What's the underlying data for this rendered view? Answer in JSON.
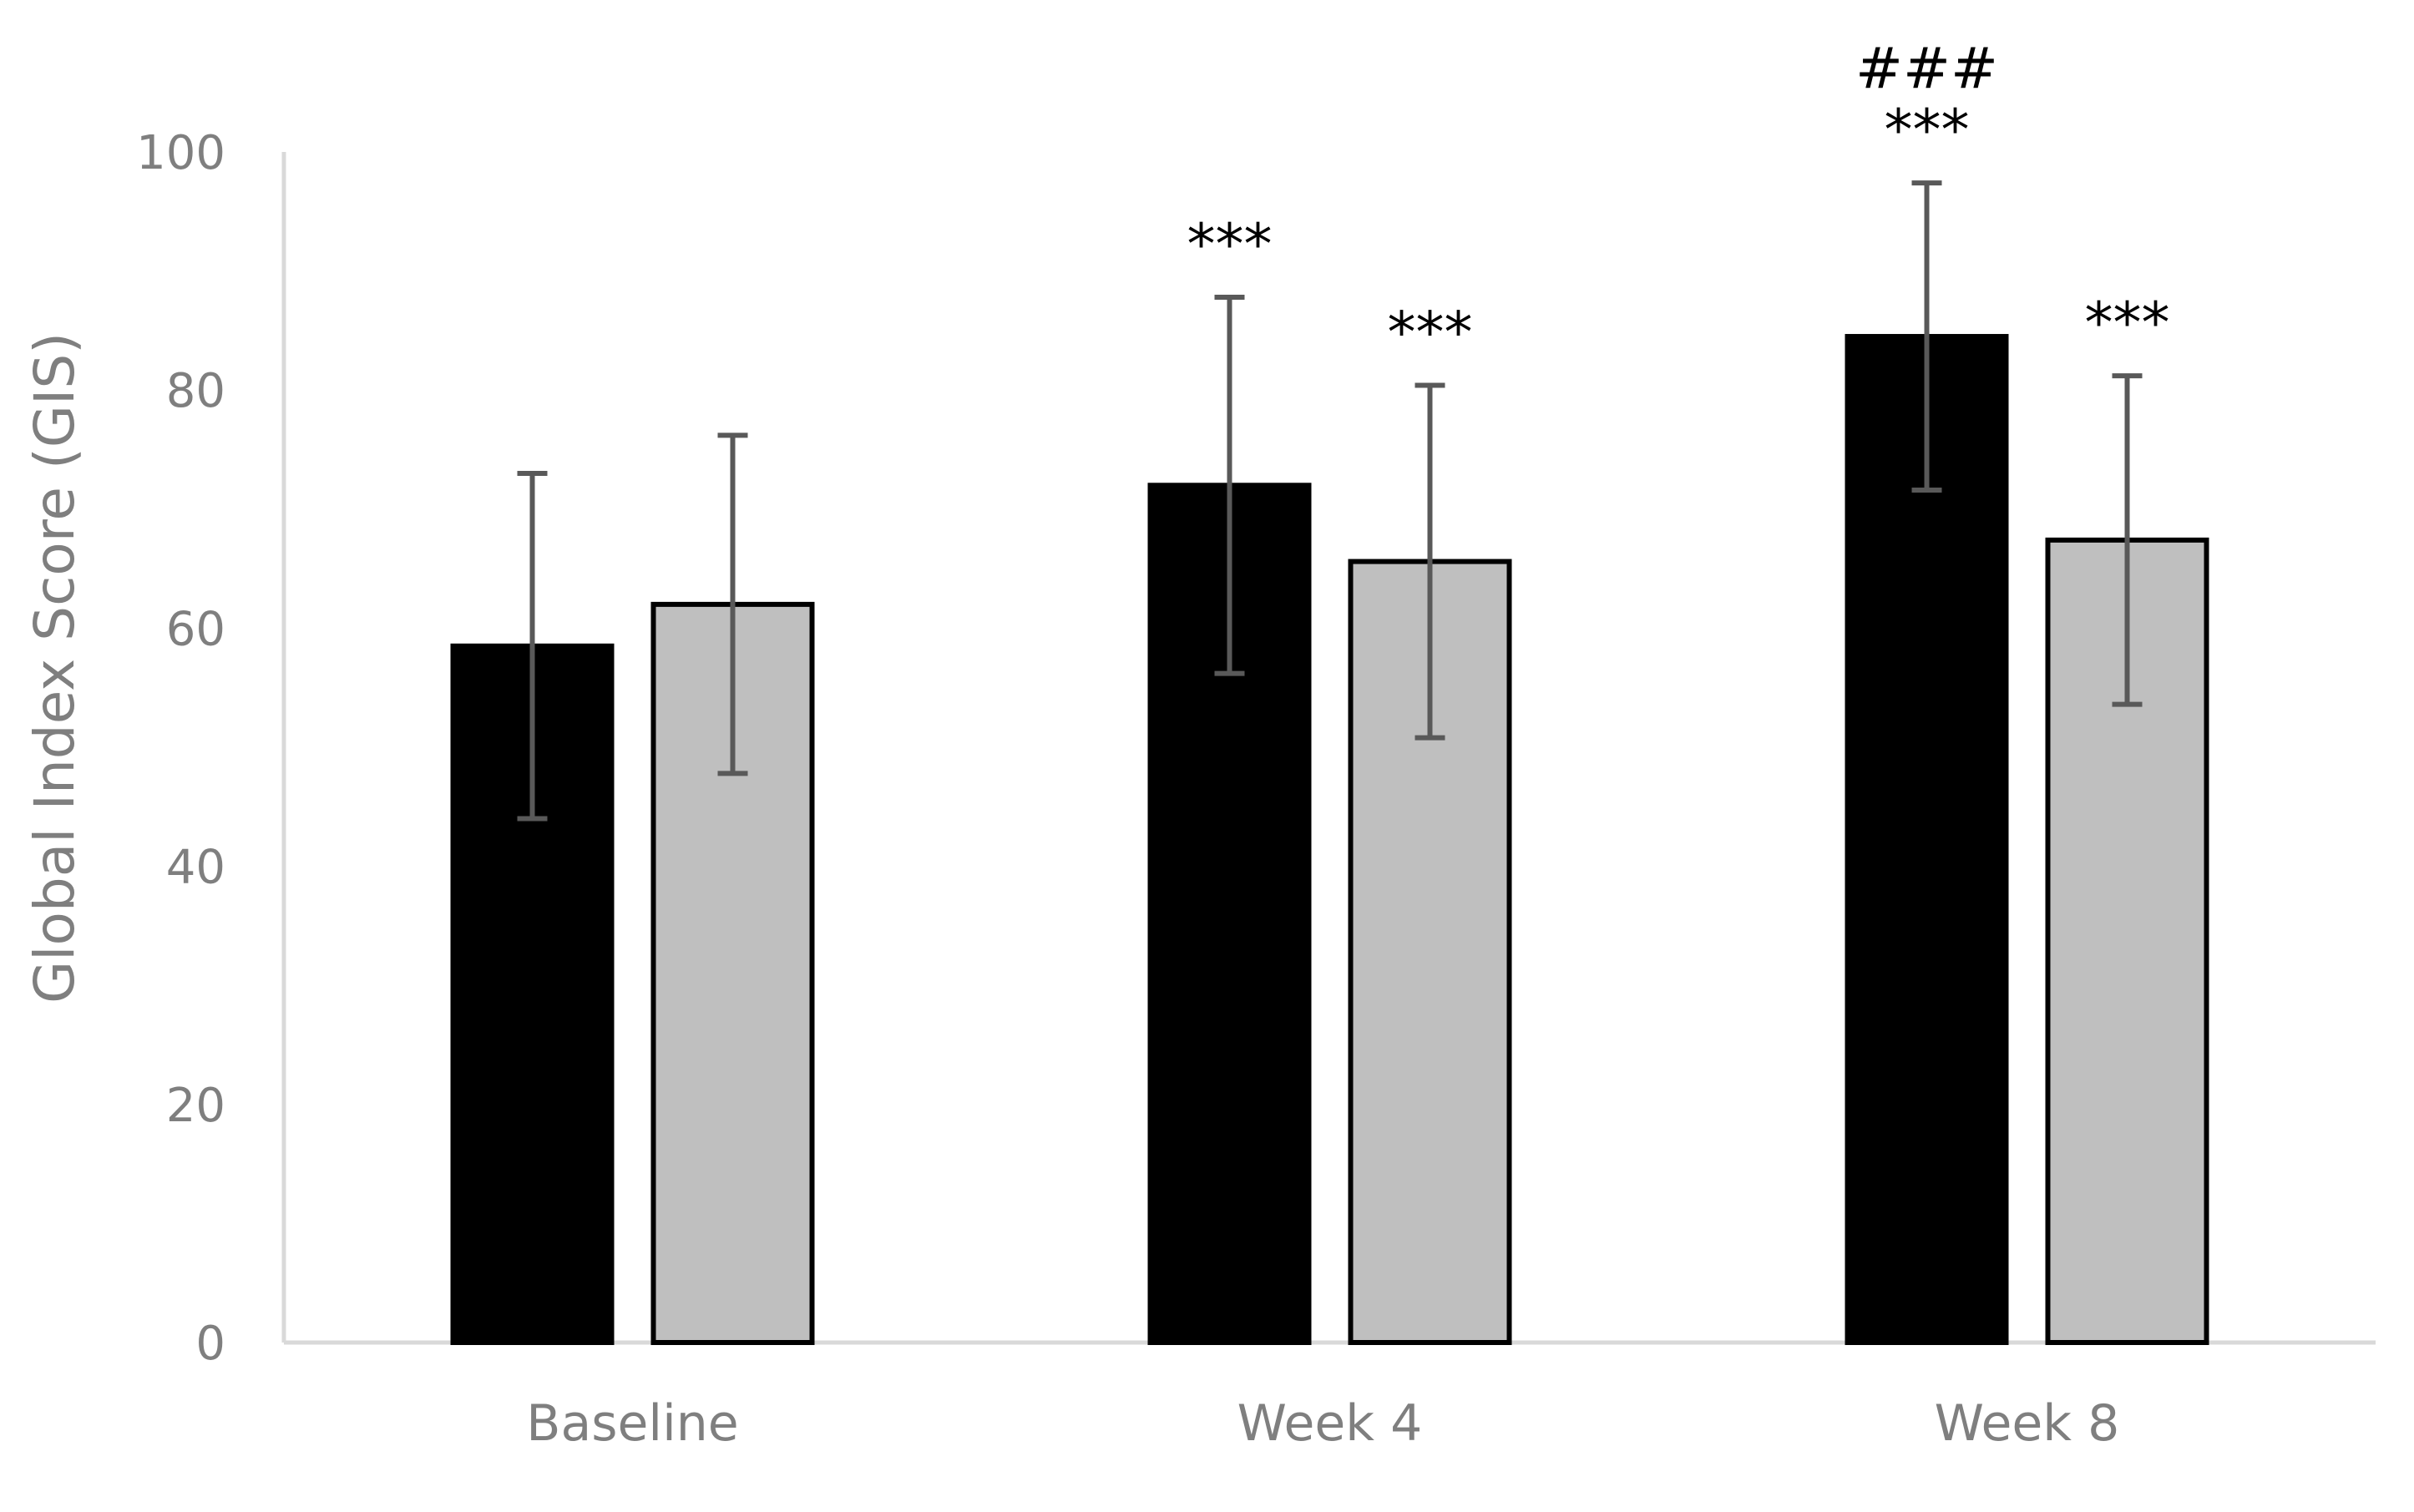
{
  "chart_data": {
    "type": "bar",
    "categories": [
      "Baseline",
      "Week 4",
      "Week 8"
    ],
    "series": [
      {
        "values": [
          58.5,
          72.0,
          84.5
        ],
        "error": [
          14.5,
          15.8,
          12.9
        ],
        "color": "#000000",
        "annotations": [
          "",
          "***",
          "###\n***"
        ]
      },
      {
        "values": [
          62.0,
          65.6,
          67.4
        ],
        "error": [
          14.2,
          14.8,
          13.8
        ],
        "color": "#bfbfbf",
        "annotations": [
          "",
          "***",
          "***"
        ]
      }
    ],
    "title": "",
    "xlabel": "",
    "ylabel": "Global Index Score (GIS)",
    "ylim": [
      0,
      100
    ],
    "yticks": [
      0,
      20,
      40,
      60,
      80,
      100
    ],
    "grid": false,
    "legend": "none"
  }
}
